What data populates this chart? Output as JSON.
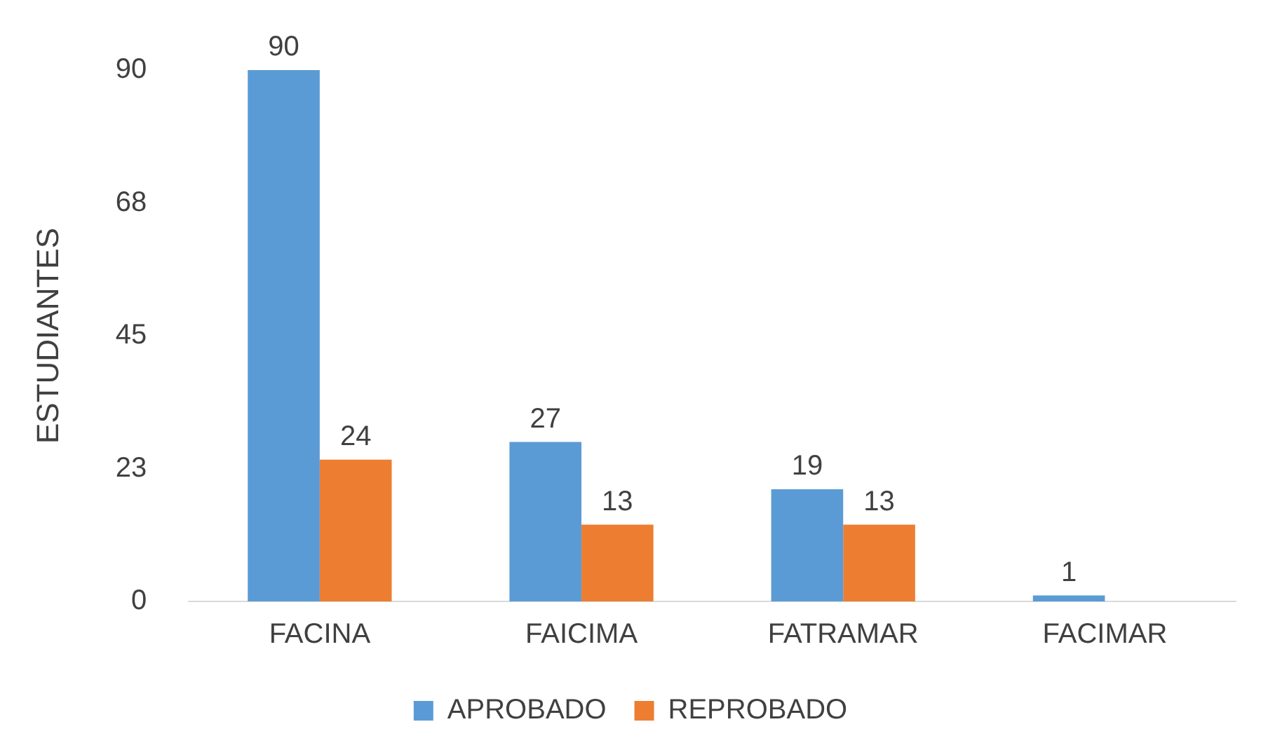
{
  "chart_data": {
    "type": "bar",
    "ylabel": "ESTUDIANTES",
    "categories": [
      "FACINA",
      "FAICIMA",
      "FATRAMAR",
      "FACIMAR"
    ],
    "series": [
      {
        "name": "APROBADO",
        "color": "#5b9bd5",
        "values": [
          90,
          27,
          19,
          1
        ]
      },
      {
        "name": "REPROBADO",
        "color": "#ed7d31",
        "values": [
          24,
          13,
          13,
          null
        ]
      }
    ],
    "ylim": [
      0,
      90
    ],
    "yticks": [
      0,
      {
        "value": 22.5,
        "label": "23"
      },
      45,
      {
        "value": 67.5,
        "label": "68"
      },
      90
    ],
    "grid": false,
    "legend": "bottom",
    "data_labels": true
  }
}
